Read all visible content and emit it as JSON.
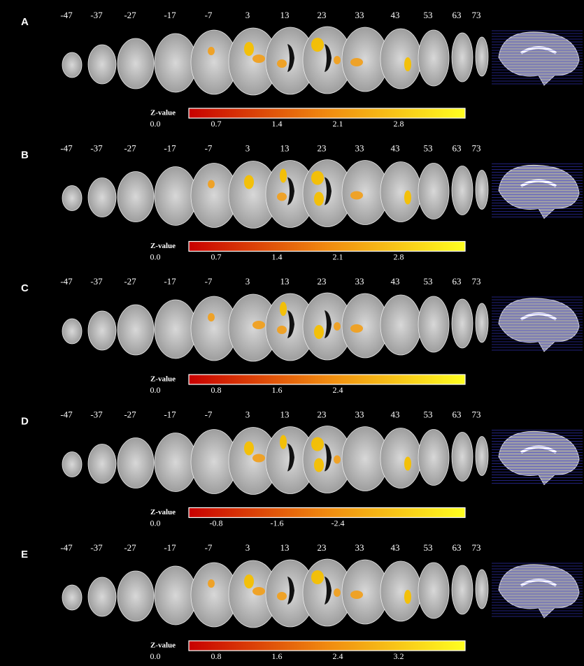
{
  "panels": [
    {
      "label": "A",
      "slices": [
        "-47",
        "-37",
        "-27",
        "-17",
        "-7",
        "3",
        "13",
        "23",
        "33",
        "43",
        "53",
        "63",
        "73"
      ],
      "colorbar": {
        "title": "Z-value",
        "ticks": [
          "0.0",
          "0.7",
          "1.4",
          "2.1",
          "2.8"
        ]
      }
    },
    {
      "label": "B",
      "slices": [
        "-47",
        "-37",
        "-27",
        "-17",
        "-7",
        "3",
        "13",
        "23",
        "33",
        "43",
        "53",
        "63",
        "73"
      ],
      "colorbar": {
        "title": "Z-value",
        "ticks": [
          "0.0",
          "0.7",
          "1.4",
          "2.1",
          "2.8"
        ]
      }
    },
    {
      "label": "C",
      "slices": [
        "-47",
        "-37",
        "-27",
        "-17",
        "-7",
        "3",
        "13",
        "23",
        "33",
        "43",
        "53",
        "63",
        "73"
      ],
      "colorbar": {
        "title": "Z-value",
        "ticks": [
          "0.0",
          "0.8",
          "1.6",
          "2.4"
        ]
      }
    },
    {
      "label": "D",
      "slices": [
        "-47",
        "-37",
        "-27",
        "-17",
        "-7",
        "3",
        "13",
        "23",
        "33",
        "43",
        "53",
        "63",
        "73"
      ],
      "colorbar": {
        "title": "Z-value",
        "ticks": [
          "0.0",
          "-0.8",
          "-1.6",
          "-2.4"
        ]
      }
    },
    {
      "label": "E",
      "slices": [
        "-47",
        "-37",
        "-27",
        "-17",
        "-7",
        "3",
        "13",
        "23",
        "33",
        "43",
        "53",
        "63",
        "73"
      ],
      "colorbar": {
        "title": "Z-value",
        "ticks": [
          "0.0",
          "0.8",
          "1.6",
          "2.4",
          "3.2"
        ]
      }
    }
  ]
}
